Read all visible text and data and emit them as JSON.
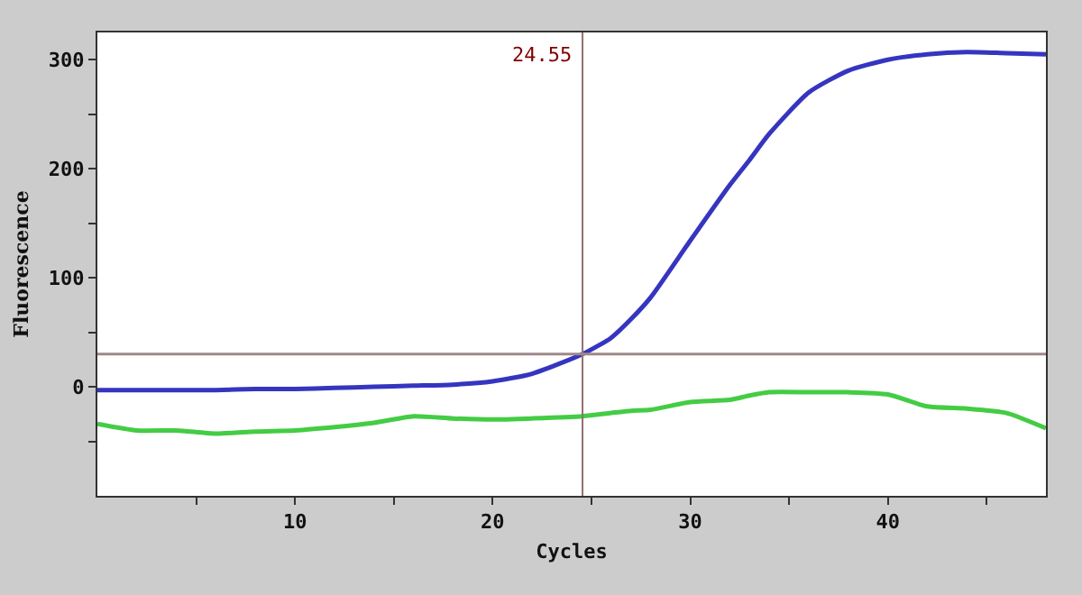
{
  "chart_data": {
    "type": "line",
    "xlabel": "Cycles",
    "ylabel": "Fluorescence",
    "x": [
      0,
      2,
      4,
      6,
      8,
      10,
      12,
      14,
      16,
      18,
      20,
      22,
      24.55,
      26,
      27,
      28,
      30,
      32,
      33,
      34,
      36,
      38,
      40,
      42,
      44,
      46,
      48
    ],
    "series": [
      {
        "color": "#3535c0",
        "values": [
          -3,
          -3,
          -3,
          -3,
          -2,
          -2,
          -1,
          0,
          1,
          2,
          5,
          12,
          30,
          45,
          62,
          82,
          134,
          185,
          208,
          232,
          270,
          290,
          300,
          305,
          307,
          306,
          305
        ]
      },
      {
        "color": "#44cc44",
        "values": [
          -34,
          -40,
          -40,
          -43,
          -41,
          -40,
          -37,
          -33,
          -27,
          -29,
          -30,
          -29,
          -27,
          -24,
          -22,
          -21,
          -14,
          -12,
          -8,
          -5,
          -5,
          -5,
          -7,
          -18,
          -20,
          -24,
          -38
        ]
      }
    ],
    "xlim": [
      0,
      48
    ],
    "ylim": [
      -100,
      325
    ],
    "xticks": [
      {
        "value": 5,
        "label": null
      },
      10,
      {
        "value": 15,
        "label": null
      },
      20,
      {
        "value": 25,
        "label": null
      },
      30,
      {
        "value": 35,
        "label": null
      },
      40,
      {
        "value": 45,
        "label": null
      }
    ],
    "yticks": [
      {
        "value": -50,
        "label": null
      },
      0,
      {
        "value": 50,
        "label": null
      },
      100,
      {
        "value": 150,
        "label": null
      },
      200,
      {
        "value": 250,
        "label": null
      },
      300
    ],
    "ref_lines": [
      {
        "axis": "x",
        "value": 24.55,
        "label": "24.55",
        "color": "#907070"
      },
      {
        "axis": "y",
        "value": 30,
        "label": null,
        "color": "#a08888"
      }
    ],
    "grid": false,
    "marker": "none",
    "line_style": "solid"
  }
}
